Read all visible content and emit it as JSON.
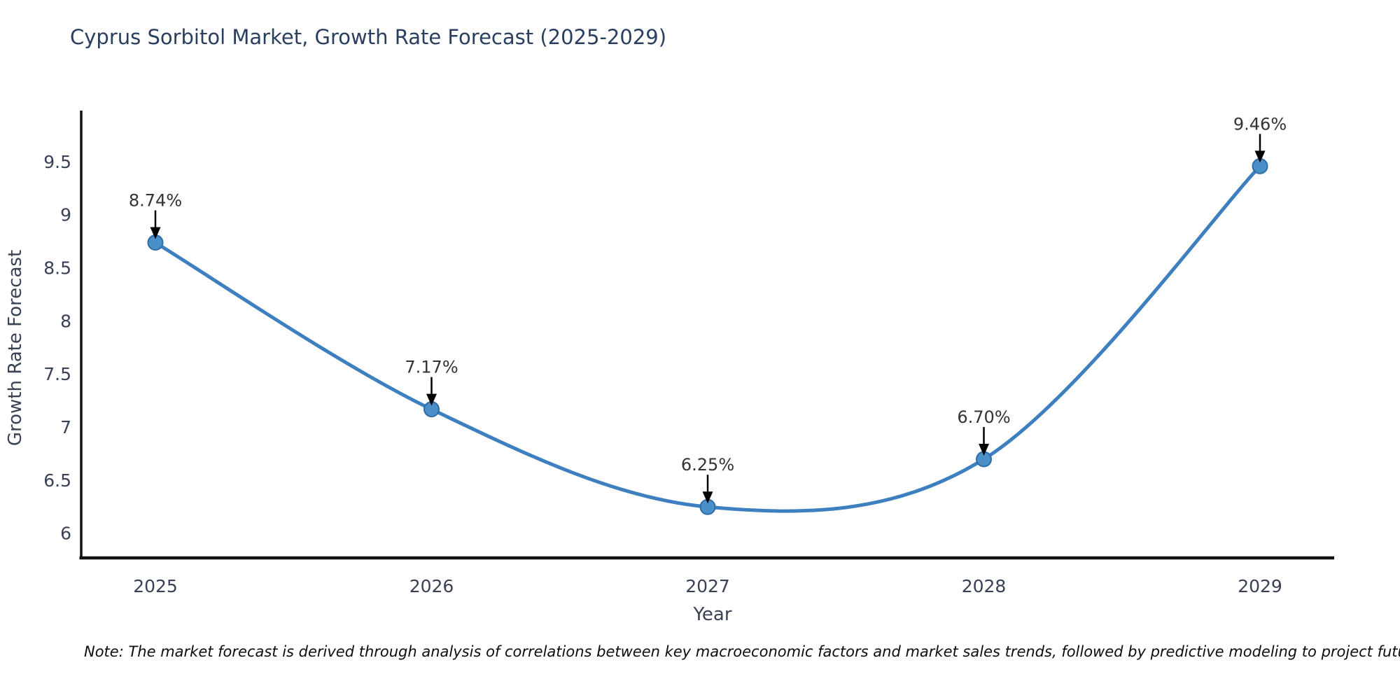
{
  "title": {
    "text": "Cyprus Sorbitol Market, Growth Rate Forecast (2025-2029)"
  },
  "note": {
    "text": "Note: The market forecast is derived through analysis of correlations between key macroeconomic factors and market sales trends, followed by predictive modeling to project future sales"
  },
  "chart_data": {
    "type": "line",
    "title": "Cyprus Sorbitol Market, Growth Rate Forecast (2025-2029)",
    "xlabel": "Year",
    "ylabel": "Growth Rate Forecast",
    "categories": [
      "2025",
      "2026",
      "2027",
      "2028",
      "2029"
    ],
    "series": [
      {
        "name": "Growth Rate Forecast",
        "values": [
          8.74,
          7.17,
          6.25,
          6.7,
          9.46
        ],
        "point_labels": [
          "8.74%",
          "7.17%",
          "6.25%",
          "6.70%",
          "9.46%"
        ]
      }
    ],
    "yticks": [
      "6",
      "6.5",
      "7",
      "7.5",
      "8",
      "8.5",
      "9",
      "9.5"
    ],
    "ylim": [
      5.77,
      9.97
    ],
    "line_shape": "spline",
    "grid": false,
    "legend_position": "none",
    "annotations_have_arrows": true,
    "colors": {
      "line": "#3d7fbf",
      "marker_fill": "#4a8fc7",
      "marker_stroke": "#2e6da8",
      "axis_line": "#111111",
      "axis_text": "#3a4154",
      "title_text": "#2a3f5f",
      "annotation_text": "#333333",
      "arrow": "#000000"
    }
  }
}
